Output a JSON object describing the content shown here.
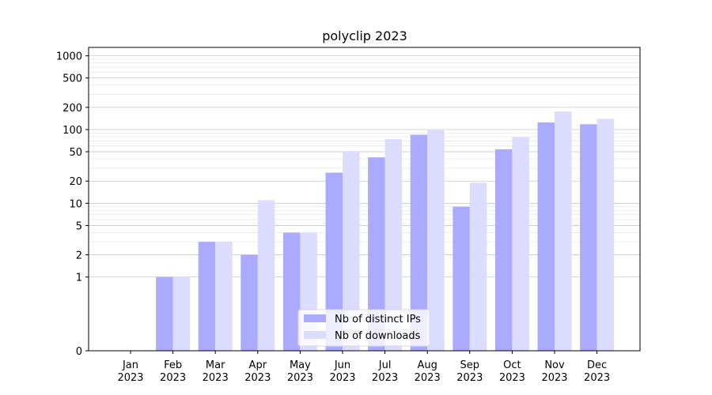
{
  "chart_data": {
    "type": "bar",
    "title": "polyclip 2023",
    "xlabel": "",
    "ylabel": "",
    "yscale": "symlog",
    "ylim": [
      0,
      1300
    ],
    "y_ticks": [
      0,
      1,
      2,
      5,
      10,
      20,
      50,
      100,
      200,
      500,
      1000
    ],
    "grid": "horizontal",
    "legend_position": "bottom-center",
    "categories": [
      {
        "month": "Jan",
        "year": "2023"
      },
      {
        "month": "Feb",
        "year": "2023"
      },
      {
        "month": "Mar",
        "year": "2023"
      },
      {
        "month": "Apr",
        "year": "2023"
      },
      {
        "month": "May",
        "year": "2023"
      },
      {
        "month": "Jun",
        "year": "2023"
      },
      {
        "month": "Jul",
        "year": "2023"
      },
      {
        "month": "Aug",
        "year": "2023"
      },
      {
        "month": "Sep",
        "year": "2023"
      },
      {
        "month": "Oct",
        "year": "2023"
      },
      {
        "month": "Nov",
        "year": "2023"
      },
      {
        "month": "Dec",
        "year": "2023"
      }
    ],
    "series": [
      {
        "name": "Nb of distinct IPs",
        "color": "#aaaaff",
        "values": [
          0,
          1,
          3,
          2,
          4,
          26,
          42,
          85,
          9,
          54,
          125,
          118
        ]
      },
      {
        "name": "Nb of downloads",
        "color": "#dcdcff",
        "values": [
          0,
          1,
          3,
          11,
          4,
          51,
          74,
          98,
          19,
          79,
          176,
          140
        ]
      }
    ]
  }
}
